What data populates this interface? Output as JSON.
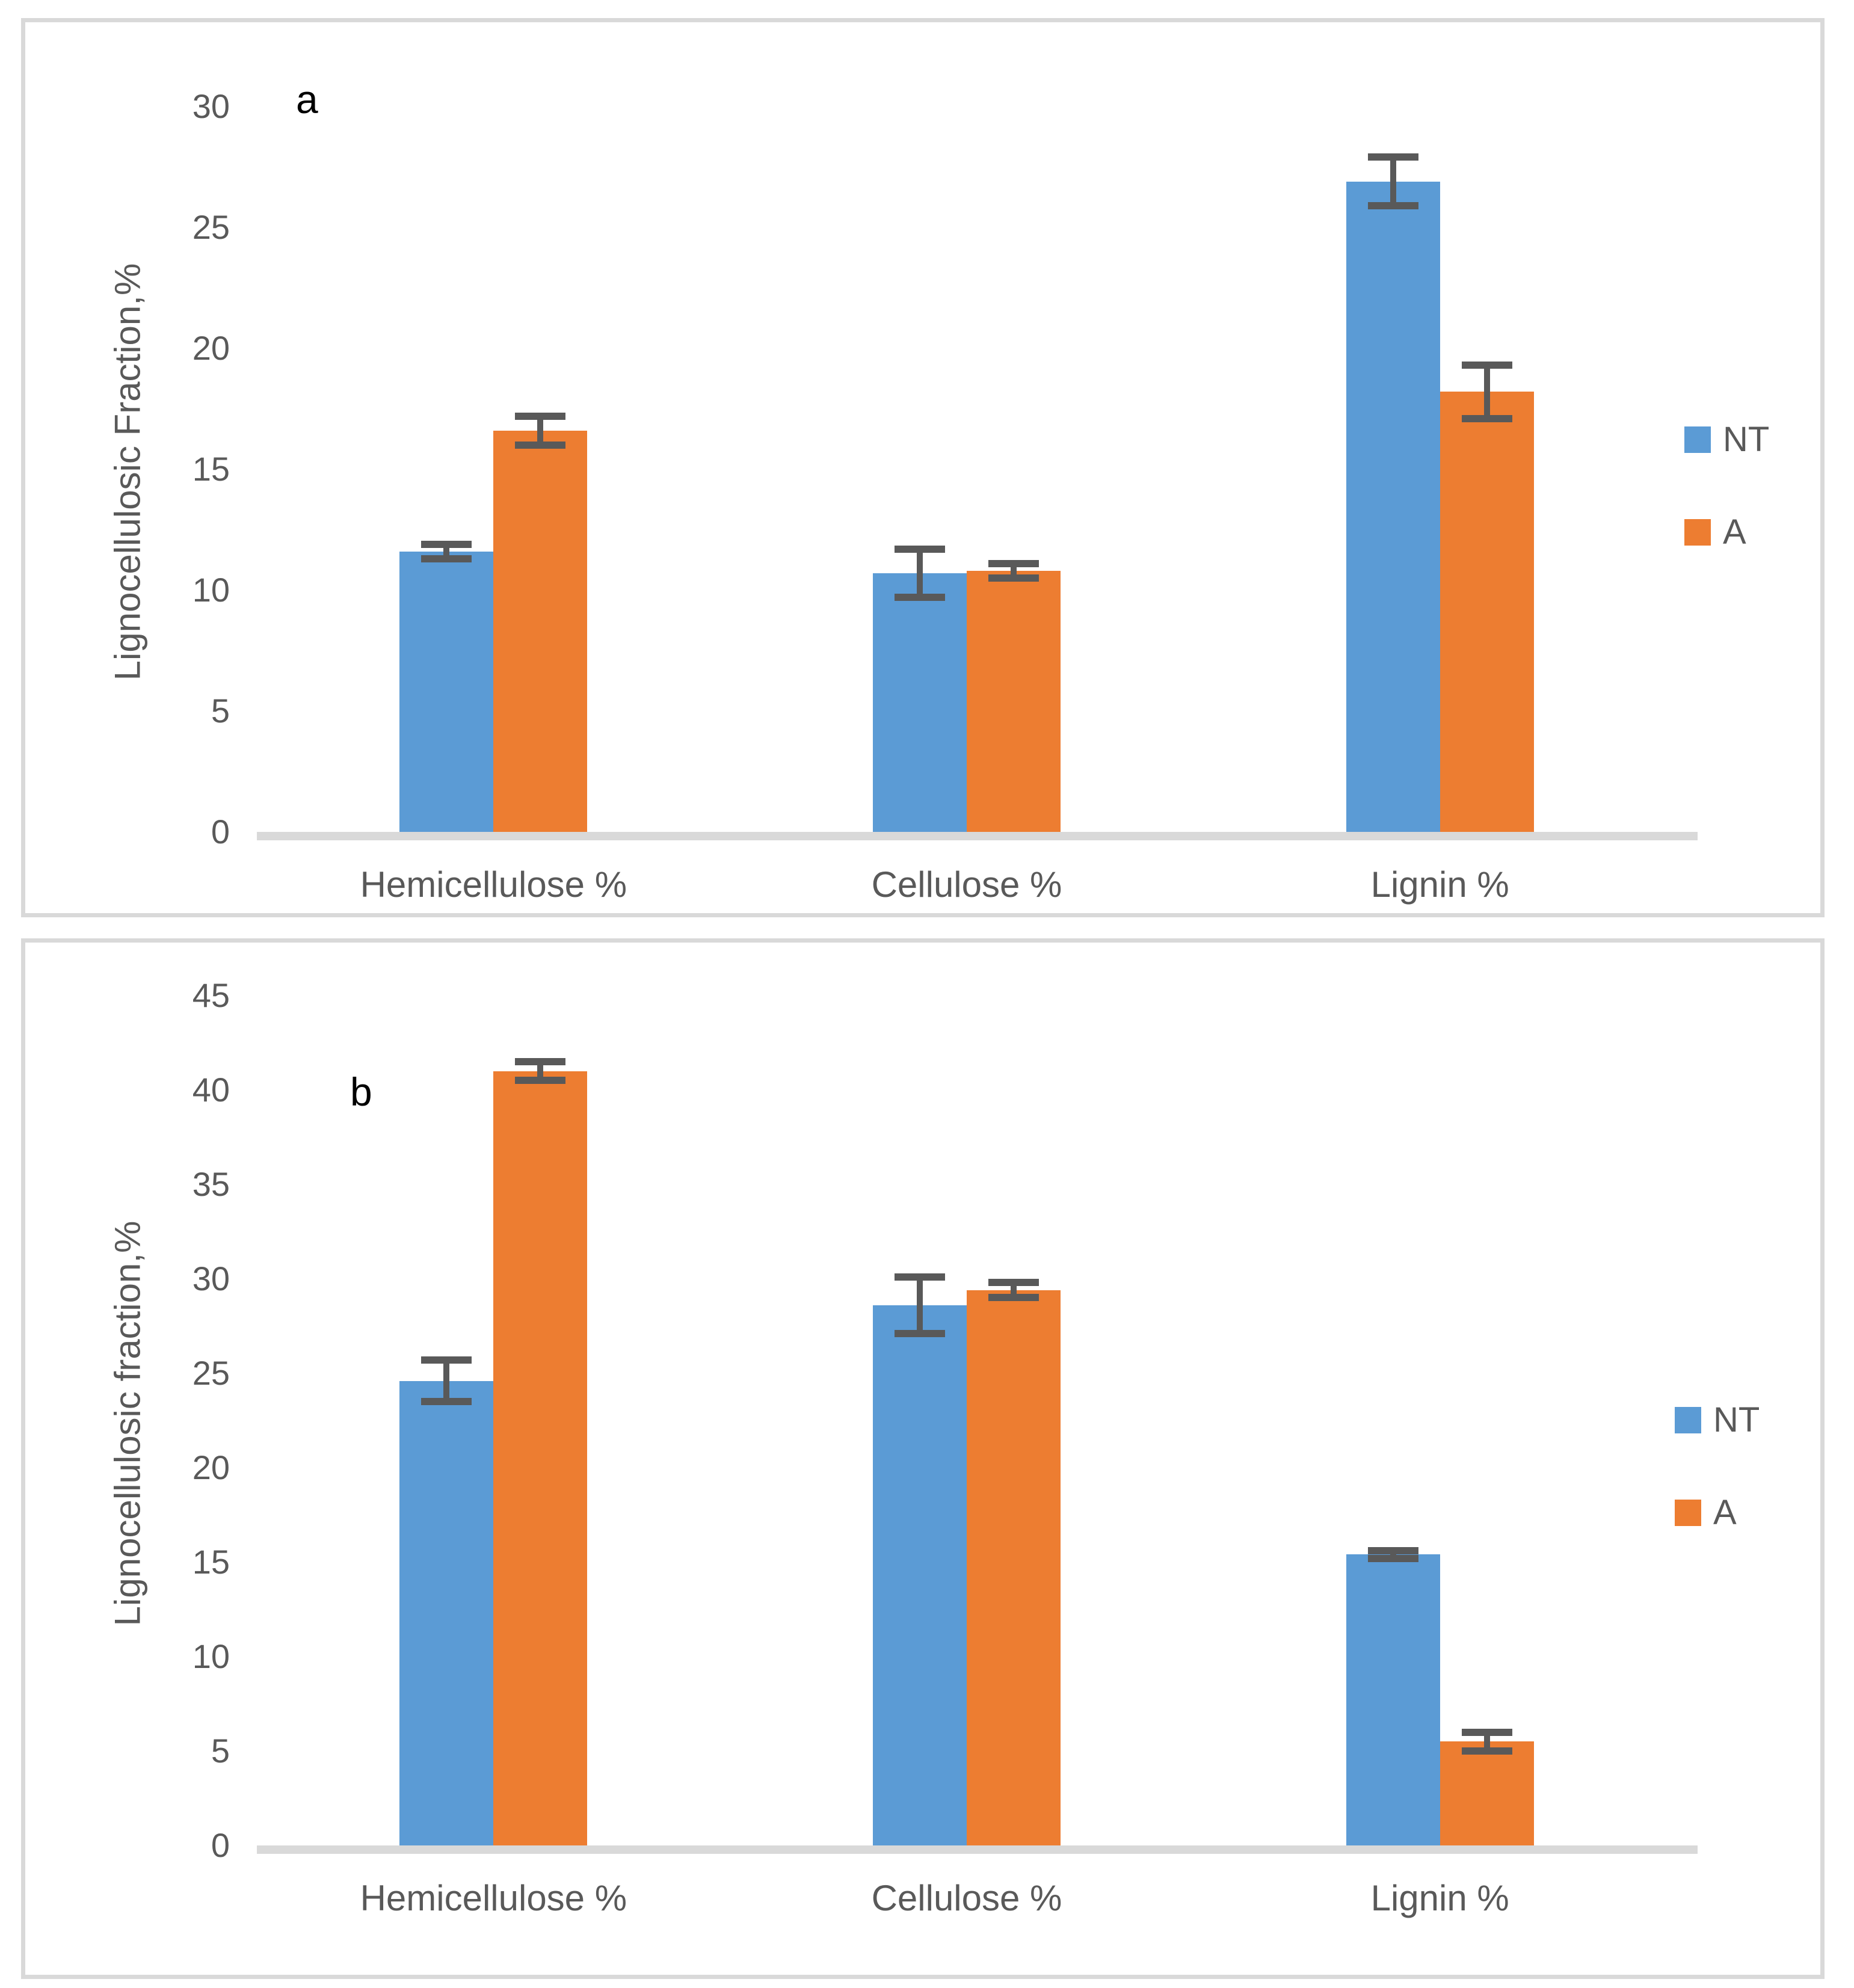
{
  "chart_data": [
    {
      "type": "bar",
      "panel_label": "a",
      "title": "",
      "xlabel": "",
      "ylabel": "Lignocellulosic Fraction,%",
      "ylim": [
        0,
        30
      ],
      "yticks": [
        "30",
        "25",
        "20",
        "15",
        "10",
        "5",
        "0"
      ],
      "ytick_values": [
        30,
        25,
        20,
        15,
        10,
        5,
        0
      ],
      "grid": "off",
      "legend_position": "right",
      "error_bars": true,
      "categories": [
        "Hemicellulose %",
        "Cellulose %",
        "Lignin %"
      ],
      "series": [
        {
          "name": "NT",
          "color": "#5B9BD5",
          "values": [
            11.6,
            10.7,
            26.9
          ],
          "errors": [
            0.3,
            1.0,
            1.0
          ]
        },
        {
          "name": "A",
          "color": "#ED7D31",
          "values": [
            16.6,
            10.8,
            18.2
          ],
          "errors": [
            0.6,
            0.3,
            1.1
          ]
        }
      ]
    },
    {
      "type": "bar",
      "panel_label": "b",
      "title": "",
      "xlabel": "",
      "ylabel": "Lignocellulosic fraction,%",
      "ylim": [
        0,
        45
      ],
      "yticks": [
        "45",
        "40",
        "35",
        "30",
        "25",
        "20",
        "15",
        "10",
        "5",
        "0"
      ],
      "ytick_values": [
        45,
        40,
        35,
        30,
        25,
        20,
        15,
        10,
        5,
        0
      ],
      "grid": "off",
      "legend_position": "right",
      "error_bars": true,
      "categories": [
        "Hemicellulose %",
        "Cellulose %",
        "Lignin %"
      ],
      "series": [
        {
          "name": "NT",
          "color": "#5B9BD5",
          "values": [
            24.6,
            28.6,
            15.4
          ],
          "errors": [
            1.1,
            1.5,
            0.2
          ]
        },
        {
          "name": "A",
          "color": "#ED7D31",
          "values": [
            41.0,
            29.4,
            5.5
          ],
          "errors": [
            0.5,
            0.4,
            0.5
          ]
        }
      ]
    }
  ],
  "colors": {
    "bar_nt": "#5B9BD5",
    "bar_a": "#ED7D31",
    "error_bar": "#595959",
    "axis_text": "#595959",
    "axis_line": "#D9D9D9",
    "panel_border": "#D9D9D9",
    "panel_label_text": "#000000",
    "background": "#FFFFFF"
  }
}
